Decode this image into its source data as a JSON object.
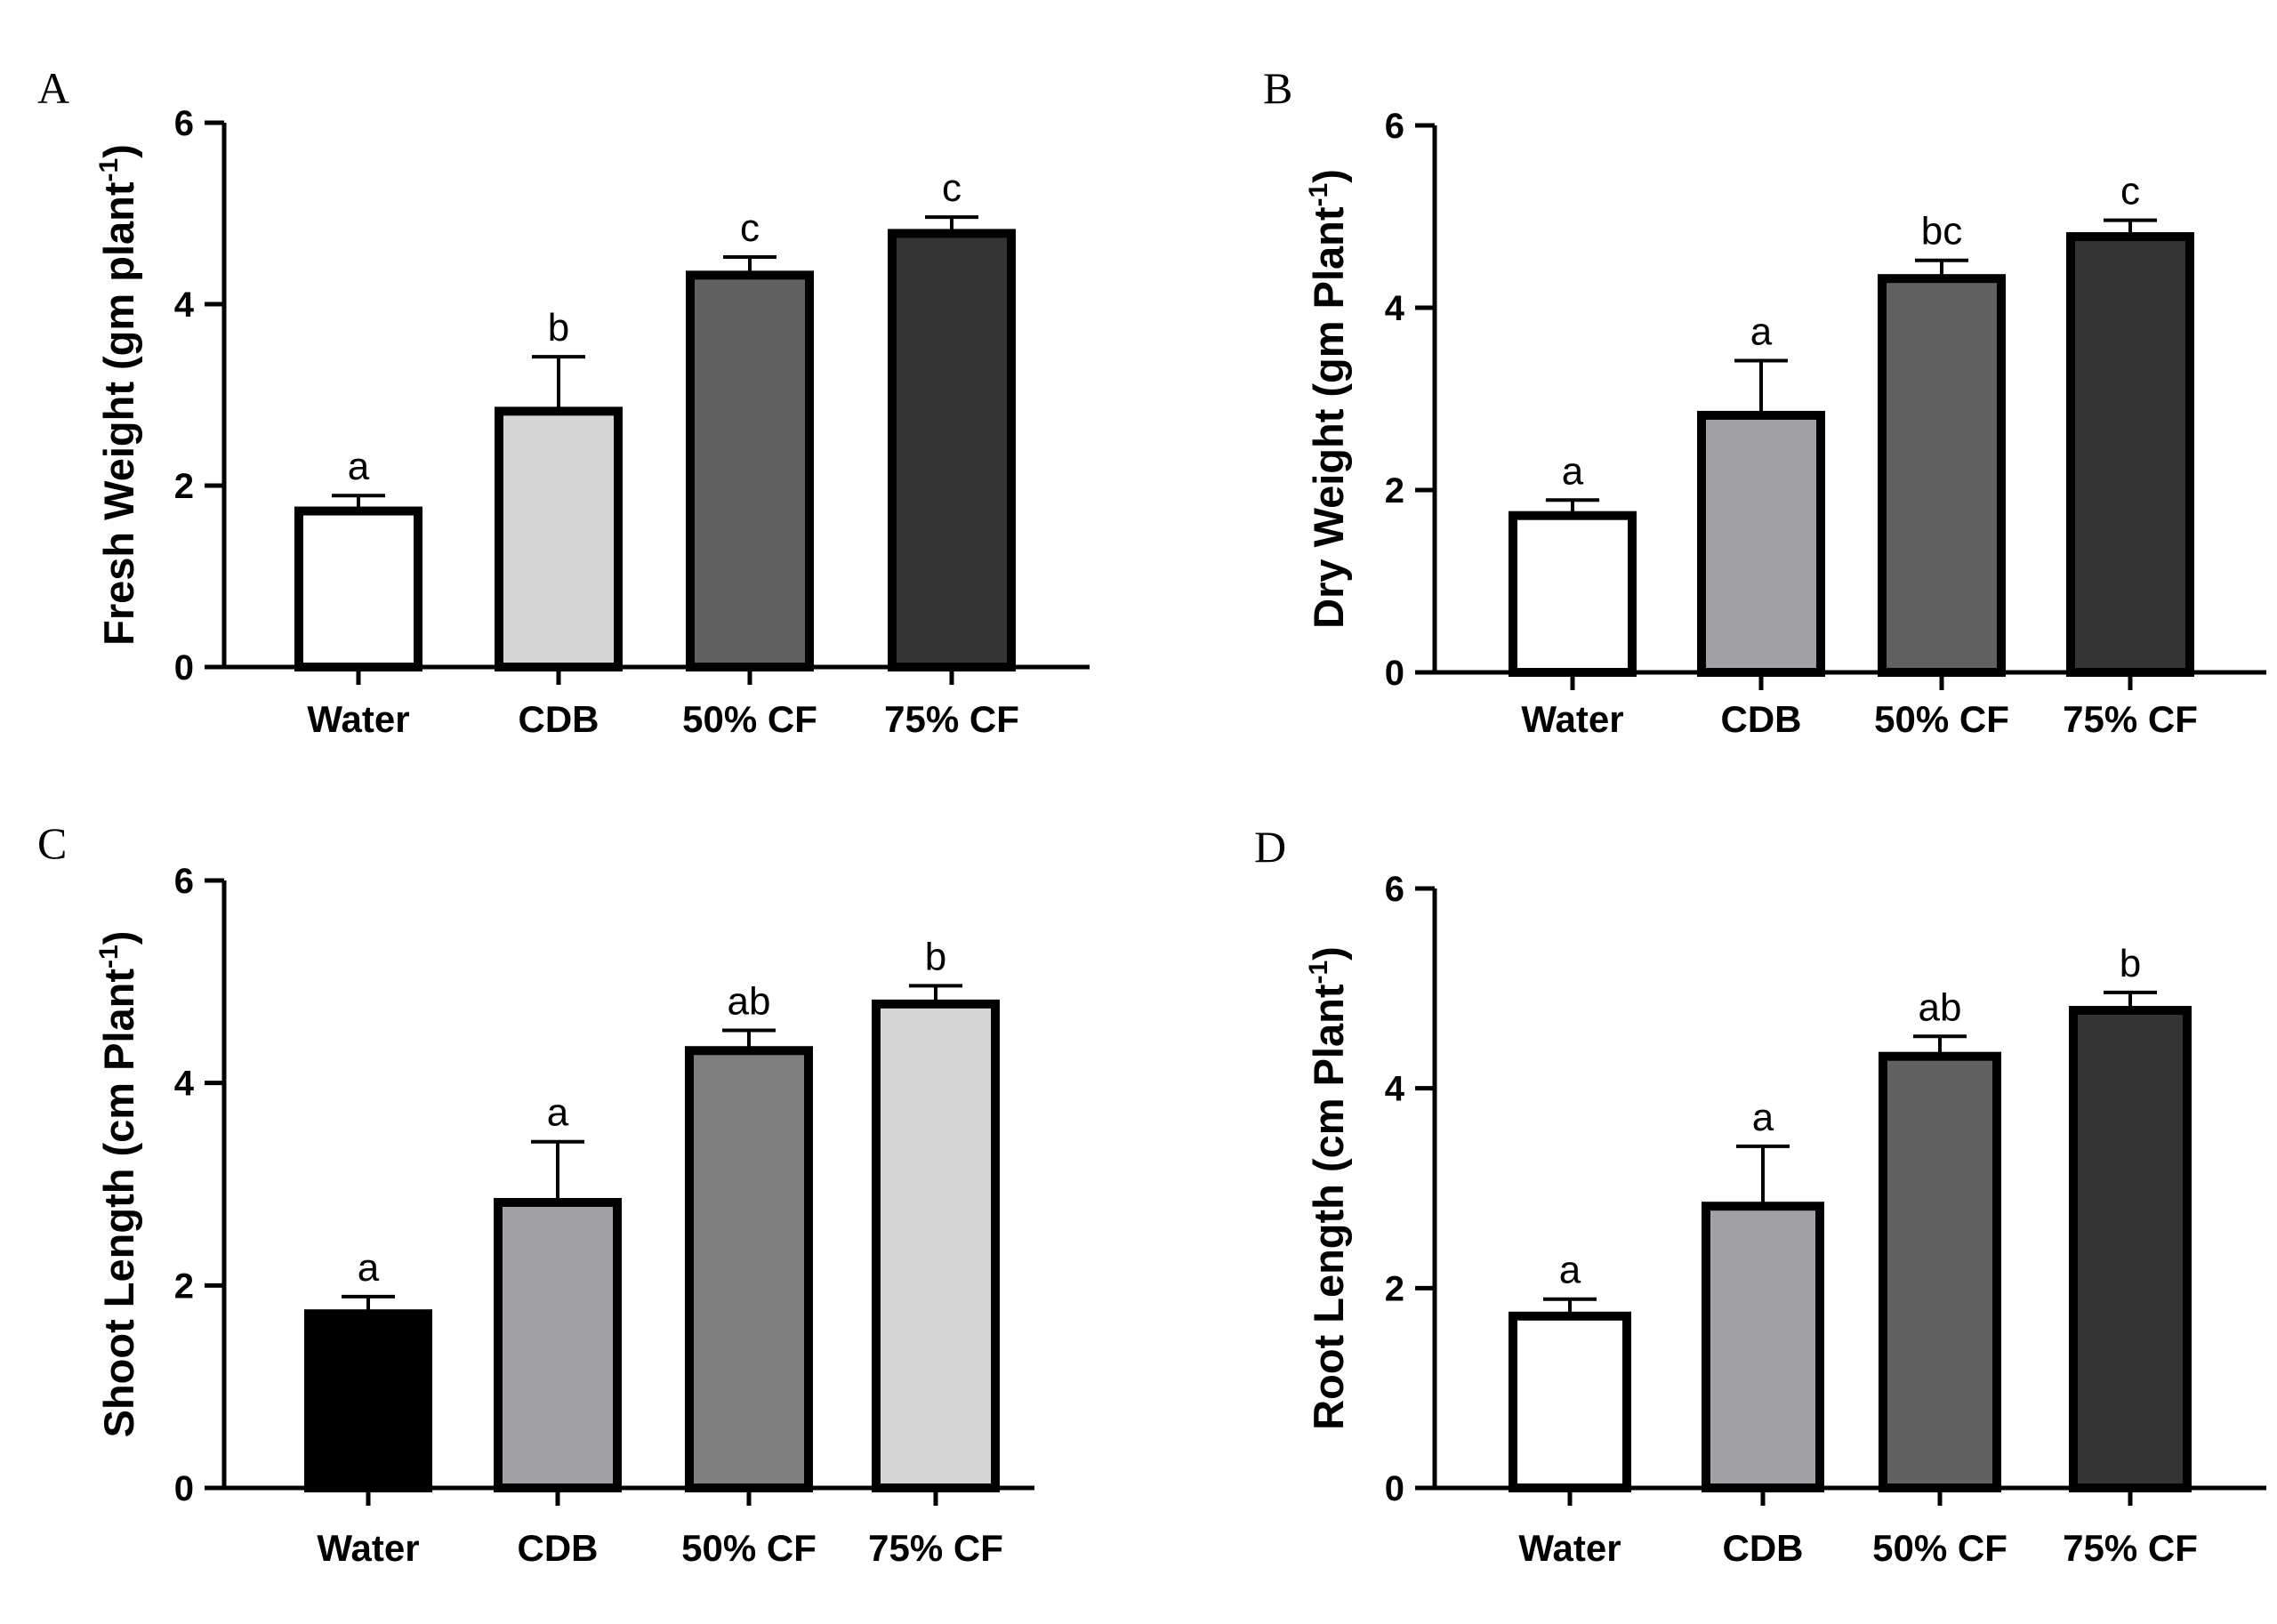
{
  "chart_data": [
    {
      "panel": "A",
      "type": "bar",
      "categories": [
        "Water",
        "CDB",
        "50% CF",
        "75% CF"
      ],
      "values": [
        1.72,
        2.82,
        4.32,
        4.78
      ],
      "errors": [
        0.17,
        0.6,
        0.2,
        0.18
      ],
      "significance": [
        "a",
        "b",
        "c",
        "c"
      ],
      "fills": [
        "#ffffff",
        "#d6d6d6",
        "#616161",
        "#343434"
      ],
      "ylabel": "Fresh Weight (gm plant",
      "ylabel_sup": "-1",
      "ylabel_close": ")",
      "ylim": [
        0,
        6
      ],
      "yticks": [
        0,
        2,
        4,
        6
      ]
    },
    {
      "panel": "B",
      "type": "bar",
      "categories": [
        "Water",
        "CDB",
        "50% CF",
        "75% CF"
      ],
      "values": [
        1.72,
        2.82,
        4.32,
        4.78
      ],
      "errors": [
        0.17,
        0.6,
        0.2,
        0.18
      ],
      "significance": [
        "a",
        "a",
        "bc",
        "c"
      ],
      "fills": [
        "#ffffff",
        "#a2a2a6",
        "#616161",
        "#343434"
      ],
      "ylabel": "Dry Weight (gm Plant",
      "ylabel_sup": "-1",
      "ylabel_close": ")",
      "ylim": [
        0,
        6
      ],
      "yticks": [
        0,
        2,
        4,
        6
      ]
    },
    {
      "panel": "C",
      "type": "bar",
      "categories": [
        "Water",
        "CDB",
        "50% CF",
        "75% CF"
      ],
      "values": [
        1.72,
        2.82,
        4.32,
        4.78
      ],
      "errors": [
        0.17,
        0.6,
        0.2,
        0.18
      ],
      "significance": [
        "a",
        "a",
        "ab",
        "b"
      ],
      "fills": [
        "#000000",
        "#a2a2a6",
        "#7f7f7f",
        "#d6d6d6"
      ],
      "ylabel": "Shoot Length (cm Plant",
      "ylabel_sup": "-1",
      "ylabel_close": ")",
      "ylim": [
        0,
        6
      ],
      "yticks": [
        0,
        2,
        4,
        6
      ]
    },
    {
      "panel": "D",
      "type": "bar",
      "categories": [
        "Water",
        "CDB",
        "50% CF",
        "75% CF"
      ],
      "values": [
        1.72,
        2.82,
        4.32,
        4.78
      ],
      "errors": [
        0.17,
        0.6,
        0.2,
        0.18
      ],
      "significance": [
        "a",
        "a",
        "ab",
        "b"
      ],
      "fills": [
        "#ffffff",
        "#a2a2a6",
        "#616161",
        "#343434"
      ],
      "ylabel": "Root Length (cm Plant",
      "ylabel_sup": "-1",
      "ylabel_close": ")",
      "ylim": [
        0,
        6
      ],
      "yticks": [
        0,
        2,
        4,
        6
      ]
    }
  ]
}
